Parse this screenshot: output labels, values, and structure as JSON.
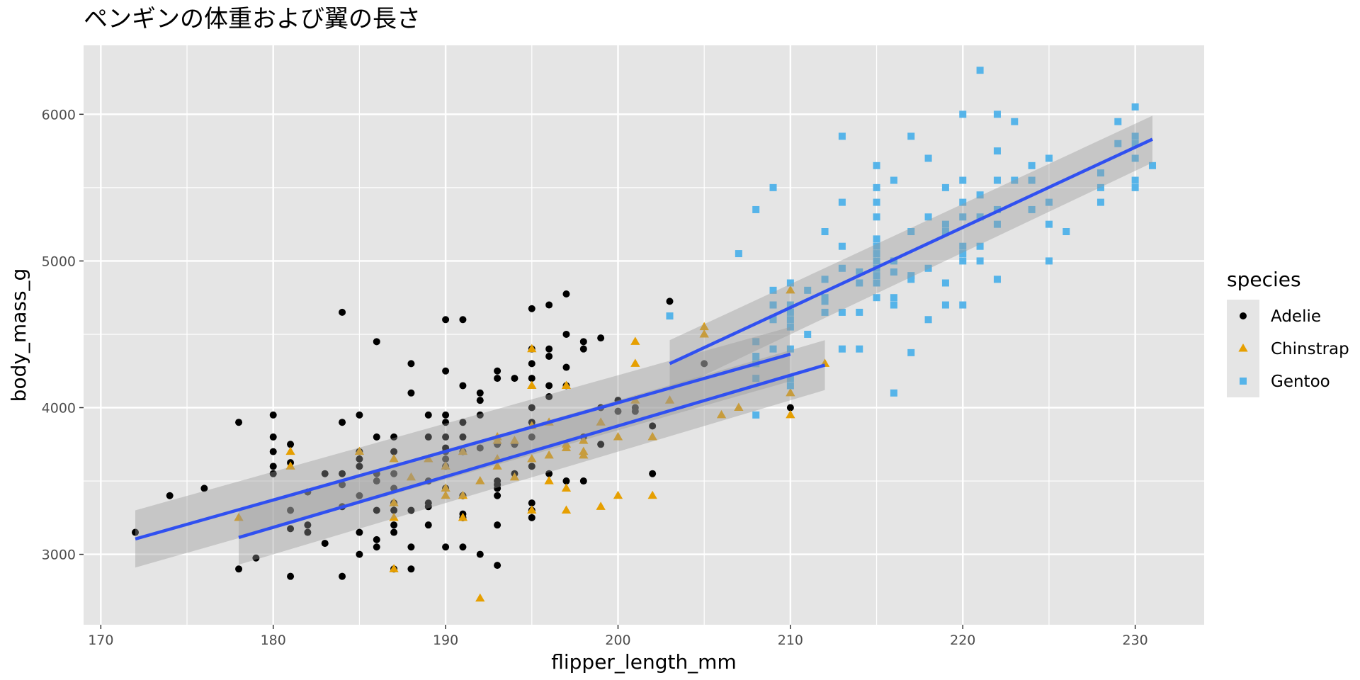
{
  "chart_data": {
    "type": "scatter",
    "title": "ペンギンの体重および翼の長さ",
    "xlabel": "flipper_length_mm",
    "ylabel": "body_mass_g",
    "xlim": [
      169,
      234
    ],
    "ylim": [
      2520,
      6470
    ],
    "xticks": [
      170,
      180,
      190,
      200,
      210,
      220,
      230
    ],
    "yticks": [
      3000,
      4000,
      5000,
      6000
    ],
    "grid": true,
    "legend": {
      "title": "species",
      "position": "right"
    },
    "series": [
      {
        "name": "Adelie",
        "color": "#000000",
        "marker": "circle",
        "points": [
          [
            172,
            3150
          ],
          [
            174,
            3400
          ],
          [
            176,
            3450
          ],
          [
            178,
            2900
          ],
          [
            178,
            3900
          ],
          [
            179,
            2975
          ],
          [
            180,
            3550
          ],
          [
            180,
            3600
          ],
          [
            180,
            3700
          ],
          [
            180,
            3800
          ],
          [
            180,
            3950
          ],
          [
            181,
            2850
          ],
          [
            181,
            3175
          ],
          [
            181,
            3300
          ],
          [
            181,
            3625
          ],
          [
            181,
            3750
          ],
          [
            182,
            3150
          ],
          [
            182,
            3200
          ],
          [
            182,
            3425
          ],
          [
            183,
            3075
          ],
          [
            183,
            3550
          ],
          [
            184,
            2850
          ],
          [
            184,
            3325
          ],
          [
            184,
            3475
          ],
          [
            184,
            3550
          ],
          [
            184,
            3900
          ],
          [
            184,
            4650
          ],
          [
            185,
            3000
          ],
          [
            185,
            3150
          ],
          [
            185,
            3400
          ],
          [
            185,
            3600
          ],
          [
            185,
            3650
          ],
          [
            185,
            3700
          ],
          [
            185,
            3950
          ],
          [
            186,
            3050
          ],
          [
            186,
            3100
          ],
          [
            186,
            3300
          ],
          [
            186,
            3500
          ],
          [
            186,
            3550
          ],
          [
            186,
            3800
          ],
          [
            186,
            4450
          ],
          [
            187,
            2900
          ],
          [
            187,
            3150
          ],
          [
            187,
            3200
          ],
          [
            187,
            3300
          ],
          [
            187,
            3350
          ],
          [
            187,
            3450
          ],
          [
            187,
            3550
          ],
          [
            187,
            3700
          ],
          [
            187,
            3800
          ],
          [
            188,
            2900
          ],
          [
            188,
            3050
          ],
          [
            188,
            3300
          ],
          [
            188,
            4100
          ],
          [
            188,
            4300
          ],
          [
            189,
            3200
          ],
          [
            189,
            3325
          ],
          [
            189,
            3350
          ],
          [
            189,
            3500
          ],
          [
            189,
            3800
          ],
          [
            189,
            3950
          ],
          [
            190,
            3050
          ],
          [
            190,
            3450
          ],
          [
            190,
            3600
          ],
          [
            190,
            3650
          ],
          [
            190,
            3700
          ],
          [
            190,
            3725
          ],
          [
            190,
            3800
          ],
          [
            190,
            3900
          ],
          [
            190,
            3950
          ],
          [
            190,
            4250
          ],
          [
            190,
            4600
          ],
          [
            191,
            3050
          ],
          [
            191,
            3250
          ],
          [
            191,
            3275
          ],
          [
            191,
            3400
          ],
          [
            191,
            3700
          ],
          [
            191,
            3800
          ],
          [
            191,
            3900
          ],
          [
            191,
            4150
          ],
          [
            191,
            4600
          ],
          [
            192,
            3000
          ],
          [
            192,
            3725
          ],
          [
            192,
            3950
          ],
          [
            192,
            4050
          ],
          [
            192,
            4100
          ],
          [
            193,
            2925
          ],
          [
            193,
            3200
          ],
          [
            193,
            3400
          ],
          [
            193,
            3450
          ],
          [
            193,
            3475
          ],
          [
            193,
            3500
          ],
          [
            193,
            3750
          ],
          [
            193,
            4200
          ],
          [
            193,
            4250
          ],
          [
            194,
            3550
          ],
          [
            194,
            3750
          ],
          [
            194,
            4200
          ],
          [
            195,
            3250
          ],
          [
            195,
            3300
          ],
          [
            195,
            3350
          ],
          [
            195,
            3600
          ],
          [
            195,
            3800
          ],
          [
            195,
            3900
          ],
          [
            195,
            4000
          ],
          [
            195,
            4200
          ],
          [
            195,
            4300
          ],
          [
            195,
            4400
          ],
          [
            195,
            4675
          ],
          [
            196,
            3550
          ],
          [
            196,
            4075
          ],
          [
            196,
            4150
          ],
          [
            196,
            4350
          ],
          [
            196,
            4400
          ],
          [
            196,
            4700
          ],
          [
            197,
            3500
          ],
          [
            197,
            4150
          ],
          [
            197,
            4275
          ],
          [
            197,
            4500
          ],
          [
            197,
            4775
          ],
          [
            198,
            3500
          ],
          [
            198,
            3800
          ],
          [
            198,
            4400
          ],
          [
            198,
            4450
          ],
          [
            199,
            3750
          ],
          [
            199,
            4000
          ],
          [
            199,
            4475
          ],
          [
            200,
            3975
          ],
          [
            200,
            4050
          ],
          [
            201,
            3975
          ],
          [
            201,
            4000
          ],
          [
            202,
            3550
          ],
          [
            202,
            3875
          ],
          [
            203,
            4725
          ],
          [
            205,
            4300
          ],
          [
            210,
            4000
          ]
        ]
      },
      {
        "name": "Chinstrap",
        "color": "#e69f00",
        "marker": "triangle",
        "points": [
          [
            178,
            3250
          ],
          [
            181,
            3600
          ],
          [
            181,
            3700
          ],
          [
            185,
            3700
          ],
          [
            187,
            2900
          ],
          [
            187,
            3250
          ],
          [
            187,
            3350
          ],
          [
            187,
            3650
          ],
          [
            188,
            3525
          ],
          [
            189,
            3650
          ],
          [
            190,
            3400
          ],
          [
            190,
            3450
          ],
          [
            190,
            3600
          ],
          [
            191,
            3250
          ],
          [
            191,
            3400
          ],
          [
            191,
            3700
          ],
          [
            192,
            2700
          ],
          [
            192,
            3500
          ],
          [
            193,
            3600
          ],
          [
            193,
            3650
          ],
          [
            193,
            3775
          ],
          [
            193,
            3800
          ],
          [
            194,
            3525
          ],
          [
            194,
            3775
          ],
          [
            195,
            3300
          ],
          [
            195,
            3650
          ],
          [
            195,
            3875
          ],
          [
            195,
            4150
          ],
          [
            195,
            4400
          ],
          [
            196,
            3500
          ],
          [
            196,
            3675
          ],
          [
            196,
            3900
          ],
          [
            197,
            3300
          ],
          [
            197,
            3450
          ],
          [
            197,
            3725
          ],
          [
            197,
            3750
          ],
          [
            197,
            4150
          ],
          [
            198,
            3675
          ],
          [
            198,
            3700
          ],
          [
            198,
            3775
          ],
          [
            199,
            3325
          ],
          [
            199,
            3900
          ],
          [
            200,
            3400
          ],
          [
            200,
            3800
          ],
          [
            201,
            4050
          ],
          [
            201,
            4300
          ],
          [
            201,
            4450
          ],
          [
            202,
            3400
          ],
          [
            202,
            3800
          ],
          [
            203,
            4050
          ],
          [
            205,
            4500
          ],
          [
            205,
            4550
          ],
          [
            206,
            3950
          ],
          [
            207,
            4000
          ],
          [
            210,
            3950
          ],
          [
            210,
            4100
          ],
          [
            210,
            4800
          ],
          [
            212,
            4300
          ]
        ]
      },
      {
        "name": "Gentoo",
        "color": "#56b4e9",
        "marker": "square",
        "points": [
          [
            203,
            4625
          ],
          [
            207,
            5050
          ],
          [
            208,
            3950
          ],
          [
            208,
            4200
          ],
          [
            208,
            4300
          ],
          [
            208,
            4350
          ],
          [
            208,
            4450
          ],
          [
            208,
            5350
          ],
          [
            209,
            4400
          ],
          [
            209,
            4600
          ],
          [
            209,
            4700
          ],
          [
            209,
            4800
          ],
          [
            209,
            5500
          ],
          [
            210,
            4150
          ],
          [
            210,
            4200
          ],
          [
            210,
            4400
          ],
          [
            210,
            4550
          ],
          [
            210,
            4600
          ],
          [
            210,
            4650
          ],
          [
            210,
            4700
          ],
          [
            210,
            4850
          ],
          [
            211,
            4500
          ],
          [
            211,
            4800
          ],
          [
            212,
            4650
          ],
          [
            212,
            4725
          ],
          [
            212,
            4750
          ],
          [
            212,
            4875
          ],
          [
            212,
            5200
          ],
          [
            213,
            4400
          ],
          [
            213,
            4650
          ],
          [
            213,
            4950
          ],
          [
            213,
            5100
          ],
          [
            213,
            5400
          ],
          [
            213,
            5850
          ],
          [
            214,
            4400
          ],
          [
            214,
            4650
          ],
          [
            214,
            4850
          ],
          [
            214,
            4925
          ],
          [
            215,
            4750
          ],
          [
            215,
            4850
          ],
          [
            215,
            4900
          ],
          [
            215,
            4950
          ],
          [
            215,
            5000
          ],
          [
            215,
            5050
          ],
          [
            215,
            5100
          ],
          [
            215,
            5150
          ],
          [
            215,
            5300
          ],
          [
            215,
            5400
          ],
          [
            215,
            5500
          ],
          [
            215,
            5650
          ],
          [
            216,
            4100
          ],
          [
            216,
            4700
          ],
          [
            216,
            4750
          ],
          [
            216,
            4925
          ],
          [
            216,
            5000
          ],
          [
            216,
            5550
          ],
          [
            217,
            4375
          ],
          [
            217,
            4875
          ],
          [
            217,
            4900
          ],
          [
            217,
            5200
          ],
          [
            217,
            5850
          ],
          [
            218,
            4600
          ],
          [
            218,
            4950
          ],
          [
            218,
            5300
          ],
          [
            218,
            5700
          ],
          [
            219,
            4700
          ],
          [
            219,
            4850
          ],
          [
            219,
            5200
          ],
          [
            219,
            5250
          ],
          [
            219,
            5500
          ],
          [
            220,
            4700
          ],
          [
            220,
            5000
          ],
          [
            220,
            5050
          ],
          [
            220,
            5100
          ],
          [
            220,
            5300
          ],
          [
            220,
            5400
          ],
          [
            220,
            5550
          ],
          [
            220,
            6000
          ],
          [
            221,
            5000
          ],
          [
            221,
            5100
          ],
          [
            221,
            5300
          ],
          [
            221,
            5450
          ],
          [
            221,
            6300
          ],
          [
            222,
            4875
          ],
          [
            222,
            5250
          ],
          [
            222,
            5350
          ],
          [
            222,
            5550
          ],
          [
            222,
            5750
          ],
          [
            222,
            6000
          ],
          [
            223,
            5550
          ],
          [
            223,
            5950
          ],
          [
            224,
            5350
          ],
          [
            224,
            5550
          ],
          [
            224,
            5650
          ],
          [
            225,
            5000
          ],
          [
            225,
            5250
          ],
          [
            225,
            5400
          ],
          [
            225,
            5700
          ],
          [
            226,
            5200
          ],
          [
            228,
            5400
          ],
          [
            228,
            5500
          ],
          [
            228,
            5600
          ],
          [
            229,
            5800
          ],
          [
            229,
            5950
          ],
          [
            230,
            5500
          ],
          [
            230,
            5550
          ],
          [
            230,
            5700
          ],
          [
            230,
            5800
          ],
          [
            230,
            5850
          ],
          [
            230,
            6050
          ],
          [
            231,
            5650
          ]
        ]
      }
    ],
    "trend_lines": [
      {
        "group": "Adelie",
        "x": [
          172,
          210
        ],
        "y": [
          3105,
          4365
        ],
        "ci_lower": [
          2910,
          4180
        ],
        "ci_upper": [
          3300,
          4550
        ]
      },
      {
        "group": "Chinstrap",
        "x": [
          178,
          212
        ],
        "y": [
          3115,
          4290
        ],
        "ci_lower": [
          2930,
          4120
        ],
        "ci_upper": [
          3300,
          4460
        ]
      },
      {
        "group": "Gentoo",
        "x": [
          203,
          231
        ],
        "y": [
          4300,
          5830
        ],
        "ci_lower": [
          4110,
          5670
        ],
        "ci_upper": [
          4460,
          5990
        ]
      }
    ],
    "colors": {
      "panel_background": "#e5e5e5",
      "gridline": "#ffffff",
      "trend_line": "#3050f0",
      "confidence_band": "#999999",
      "legend_key_background": "#e5e5e5"
    }
  }
}
